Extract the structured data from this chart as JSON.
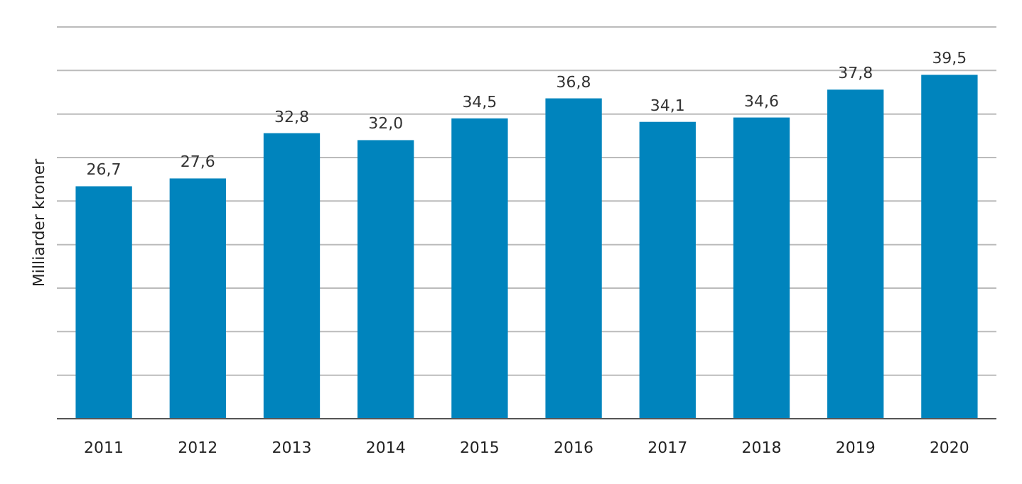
{
  "chart_data": {
    "type": "bar",
    "ylabel": "Milliarder kroner",
    "categories": [
      "2011",
      "2012",
      "2013",
      "2014",
      "2015",
      "2016",
      "2017",
      "2018",
      "2019",
      "2020"
    ],
    "values": [
      26.7,
      27.6,
      32.8,
      32.0,
      34.5,
      36.8,
      34.1,
      34.6,
      37.8,
      39.5
    ],
    "value_labels": [
      "26,7",
      "27,6",
      "32,8",
      "32,0",
      "34,5",
      "36,8",
      "34,1",
      "34,6",
      "37,8",
      "39,5"
    ],
    "color": "#0084bd",
    "ylim": [
      0,
      45
    ],
    "yticks": [
      {
        "value": 0,
        "label": null
      },
      {
        "value": 5,
        "label": null
      },
      {
        "value": 10,
        "label": null
      },
      {
        "value": 15,
        "label": null
      },
      {
        "value": 20,
        "label": null
      },
      {
        "value": 25,
        "label": null
      },
      {
        "value": 30,
        "label": null
      },
      {
        "value": 35,
        "label": null
      },
      {
        "value": 40,
        "label": null
      },
      {
        "value": 45,
        "label": null
      }
    ],
    "grid": "y",
    "tick_labels": "x"
  }
}
